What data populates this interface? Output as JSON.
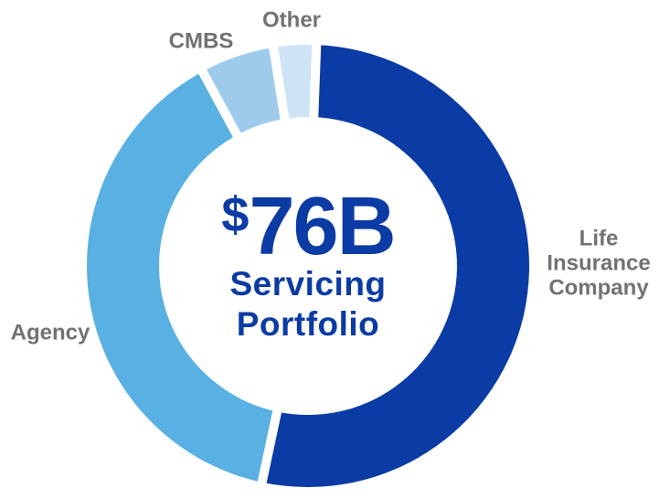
{
  "chart_data": {
    "type": "donut",
    "center_label": {
      "currency_symbol": "$",
      "amount": "76B",
      "lines": [
        "Servicing",
        "Portfolio"
      ]
    },
    "segments": [
      {
        "id": "life-insurance-company",
        "label": "Life Insurance Company",
        "approx_pct": 53,
        "start_deg": 2.2,
        "end_deg": 192.0,
        "color": "#0B3BA4"
      },
      {
        "id": "agency",
        "label": "Agency",
        "approx_pct": 39,
        "start_deg": 192.0,
        "end_deg": 331.5,
        "color": "#58B0E3"
      },
      {
        "id": "cmbs",
        "label": "CMBS",
        "approx_pct": 5,
        "start_deg": 331.5,
        "end_deg": 351.0,
        "color": "#9ECBEC"
      },
      {
        "id": "other",
        "label": "Other",
        "approx_pct": 3,
        "start_deg": 351.0,
        "end_deg": 362.2,
        "color": "#CEE3F6"
      }
    ],
    "colors": {
      "center_text": "#0B3BA4",
      "label_text": "#717276",
      "segment_gap": "#FFFFFF",
      "background": "#FFFFFF"
    },
    "legend_position": "around-chart",
    "grid": false
  }
}
